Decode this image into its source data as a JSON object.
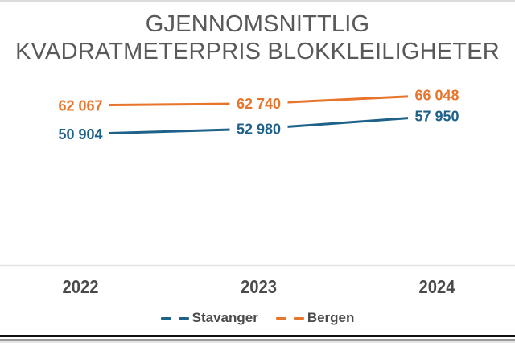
{
  "title": {
    "line1": "GJENNOMSNITTLIG",
    "line2": "KVADRATMETERPRIS BLOKKLEILIGHETER"
  },
  "chart_data": {
    "type": "line",
    "title": "GJENNOMSNITTLIG KVADRATMETERPRIS BLOKKLEILIGHETER",
    "categories": [
      "2022",
      "2023",
      "2024"
    ],
    "series": [
      {
        "name": "Stavanger",
        "color": "#1e6289",
        "values": [
          50904,
          52980,
          57950
        ],
        "labels": [
          "50 904",
          "52 980",
          "57 950"
        ]
      },
      {
        "name": "Bergen",
        "color": "#e8752c",
        "values": [
          62067,
          62740,
          66048
        ],
        "labels": [
          "62 067",
          "62 740",
          "66 048"
        ]
      }
    ],
    "xlabel": "",
    "ylabel": "",
    "ylim": [
      0,
      70000
    ],
    "grid": false,
    "data_labels": true,
    "legend_position": "bottom",
    "line_style": "solid",
    "legend_marker_style": "dashed"
  },
  "colors": {
    "title": "#58595b",
    "tick_label": "#4a4a4c",
    "legend_text": "#4a4a4c",
    "axis_line": "#e3e3e3",
    "background": "#ffffff"
  }
}
